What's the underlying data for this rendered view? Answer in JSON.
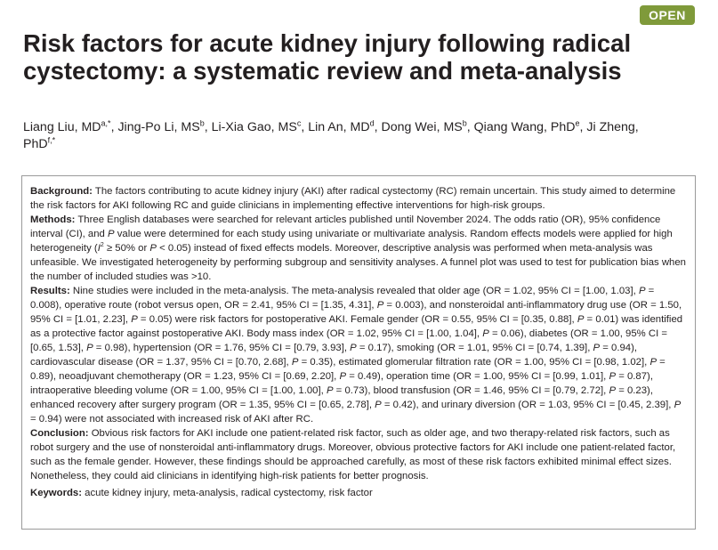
{
  "badge": "OPEN",
  "title": "Risk factors for acute kidney injury following radical cystectomy: a systematic review and meta-analysis",
  "authors": [
    {
      "name": "Liang Liu, MD",
      "sup": "a,*",
      "sep": ", "
    },
    {
      "name": "Jing-Po Li, MS",
      "sup": "b",
      "sep": ", "
    },
    {
      "name": "Li-Xia Gao, MS",
      "sup": "c",
      "sep": ", "
    },
    {
      "name": "Lin An, MD",
      "sup": "d",
      "sep": ", "
    },
    {
      "name": "Dong Wei, MS",
      "sup": "b",
      "sep": ", "
    },
    {
      "name": "Qiang Wang, PhD",
      "sup": "e",
      "sep": ", "
    },
    {
      "name": "Ji Zheng, PhD",
      "sup": "f,*",
      "sep": ""
    }
  ],
  "abstract": {
    "background": {
      "label": "Background:",
      "text": " The factors contributing to acute kidney injury (AKI) after radical cystectomy (RC) remain uncertain. This study aimed to determine the risk factors for AKI following RC and guide clinicians in implementing effective interventions for high-risk groups."
    },
    "methods": {
      "label": "Methods:",
      "t1": " Three English databases were searched for relevant articles published until November 2024. The odds ratio (OR), 95% confidence interval (CI), and ",
      "p1": "P",
      "t2": " value were determined for each study using univariate or multivariate analysis. Random effects models were applied for high heterogeneity (",
      "i2": "I",
      "i2sup": "2",
      "t3": " ≥ 50% or ",
      "p2": "P",
      "t4": " < 0.05) instead of fixed effects models. Moreover, descriptive analysis was performed when meta-analysis was unfeasible. We investigated heterogeneity by performing subgroup and sensitivity analyses. A funnel plot was used to test for publication bias when the number of included studies was >10."
    },
    "results": {
      "label": "Results:",
      "segments": [
        {
          "t": " Nine studies were included in the meta-analysis. The meta-analysis revealed that older age (OR = 1.02, 95% CI = [1.00, 1.03], ",
          "i": false
        },
        {
          "t": "P",
          "i": true
        },
        {
          "t": " = 0.008), operative route (robot versus open, OR = 2.41, 95% CI = [1.35, 4.31], ",
          "i": false
        },
        {
          "t": "P",
          "i": true
        },
        {
          "t": " = 0.003), and nonsteroidal anti-inflammatory drug use (OR = 1.50, 95% CI = [1.01, 2.23], ",
          "i": false
        },
        {
          "t": "P",
          "i": true
        },
        {
          "t": " = 0.05) were risk factors for postoperative AKI. Female gender (OR = 0.55, 95% CI = [0.35, 0.88], ",
          "i": false
        },
        {
          "t": "P",
          "i": true
        },
        {
          "t": " = 0.01) was identified as a protective factor against postoperative AKI. Body mass index (OR = 1.02, 95% CI = [1.00, 1.04], ",
          "i": false
        },
        {
          "t": "P",
          "i": true
        },
        {
          "t": " = 0.06), diabetes (OR = 1.00, 95% CI = [0.65, 1.53], ",
          "i": false
        },
        {
          "t": "P",
          "i": true
        },
        {
          "t": " = 0.98), hypertension (OR = 1.76, 95% CI = [0.79, 3.93], ",
          "i": false
        },
        {
          "t": "P",
          "i": true
        },
        {
          "t": " = 0.17), smoking (OR = 1.01, 95% CI = [0.74, 1.39], ",
          "i": false
        },
        {
          "t": "P",
          "i": true
        },
        {
          "t": " = 0.94), cardiovascular disease (OR = 1.37, 95% CI = [0.70, 2.68], ",
          "i": false
        },
        {
          "t": "P",
          "i": true
        },
        {
          "t": " = 0.35), estimated glomerular filtration rate (OR = 1.00, 95% CI = [0.98, 1.02], ",
          "i": false
        },
        {
          "t": "P",
          "i": true
        },
        {
          "t": " = 0.89), neoadjuvant chemotherapy (OR = 1.23, 95% CI = [0.69, 2.20], ",
          "i": false
        },
        {
          "t": "P",
          "i": true
        },
        {
          "t": " = 0.49), operation time (OR = 1.00, 95% CI = [0.99, 1.01], ",
          "i": false
        },
        {
          "t": "P",
          "i": true
        },
        {
          "t": " = 0.87), intraoperative bleeding volume (OR = 1.00, 95% CI = [1.00, 1.00], ",
          "i": false
        },
        {
          "t": "P",
          "i": true
        },
        {
          "t": " = 0.73), blood transfusion (OR = 1.46, 95% CI = [0.79, 2.72], ",
          "i": false
        },
        {
          "t": "P",
          "i": true
        },
        {
          "t": " = 0.23), enhanced recovery after surgery program (OR = 1.35, 95% CI = [0.65, 2.78], ",
          "i": false
        },
        {
          "t": "P",
          "i": true
        },
        {
          "t": " = 0.42), and urinary diversion (OR = 1.03, 95% CI = [0.45, 2.39], ",
          "i": false
        },
        {
          "t": "P",
          "i": true
        },
        {
          "t": " = 0.94) were not associated with increased risk of AKI after RC.",
          "i": false
        }
      ]
    },
    "conclusion": {
      "label": "Conclusion:",
      "text": " Obvious risk factors for AKI include one patient-related risk factor, such as older age, and two therapy-related risk factors, such as robot surgery and the use of nonsteroidal anti-inflammatory drugs. Moreover, obvious protective factors for AKI include one patient-related factor, such as the female gender. However, these findings should be approached carefully, as most of these risk factors exhibited minimal effect sizes. Nonetheless, they could aid clinicians in identifying high-risk patients for better prognosis."
    },
    "keywords": {
      "label": "Keywords:",
      "text": " acute kidney injury, meta-analysis, radical cystectomy, risk factor"
    }
  }
}
